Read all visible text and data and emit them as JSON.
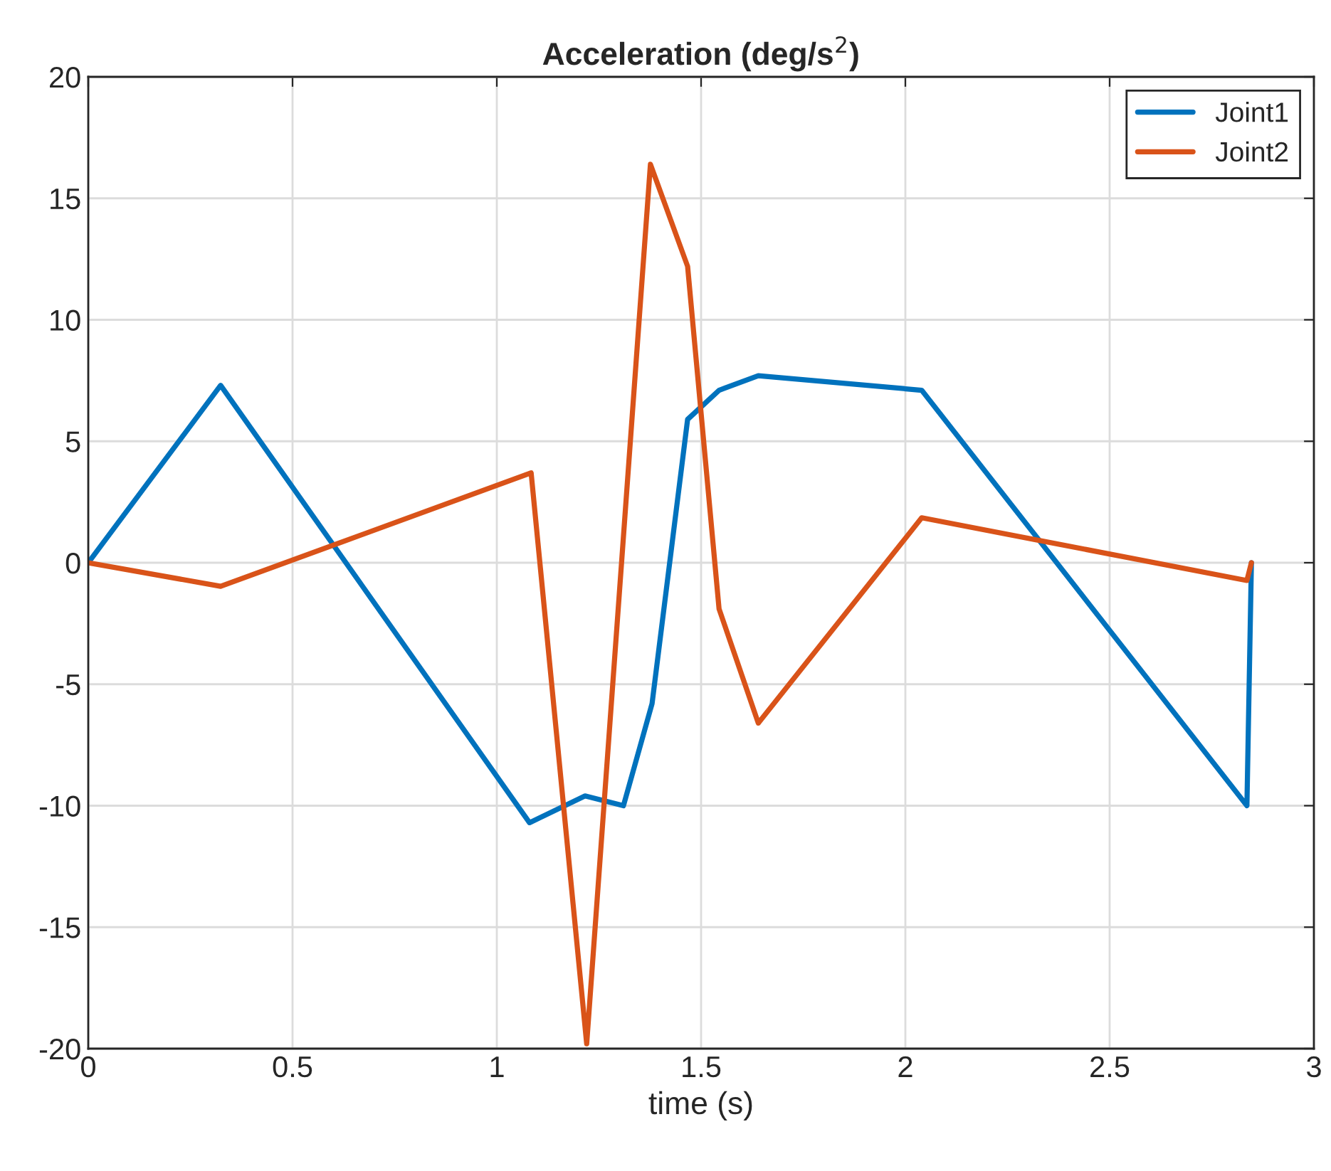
{
  "chart_data": {
    "type": "line",
    "title": "Acceleration (deg/s$^{2}$)",
    "xlabel": "time (s)",
    "xlim": [
      0,
      3
    ],
    "xticks": [
      0,
      0.5,
      1,
      1.5,
      2,
      2.5,
      3
    ],
    "ylim": [
      -20,
      20
    ],
    "yticks": [
      -20,
      -15,
      -10,
      -5,
      0,
      5,
      10,
      15,
      20
    ],
    "grid": true,
    "legend": "top right",
    "line_style": "solid",
    "series": [
      {
        "name": "Joint1",
        "color": "#0072bd",
        "x": [
          0,
          0.324,
          1.08,
          1.216,
          1.31,
          1.38,
          1.467,
          1.544,
          1.64,
          2.04,
          2.836,
          2.847
        ],
        "values": [
          0,
          7.3,
          -10.7,
          -9.6,
          -10.0,
          -5.8,
          5.9,
          7.1,
          7.7,
          7.1,
          -10.0,
          0
        ]
      },
      {
        "name": "Joint2",
        "color": "#d95319",
        "x": [
          0,
          0.324,
          1.084,
          1.22,
          1.376,
          1.467,
          1.544,
          1.64,
          2.04,
          2.836,
          2.847
        ],
        "values": [
          0,
          -0.97,
          3.7,
          -19.8,
          16.4,
          12.2,
          -1.9,
          -6.6,
          1.85,
          -0.73,
          0
        ]
      }
    ]
  }
}
